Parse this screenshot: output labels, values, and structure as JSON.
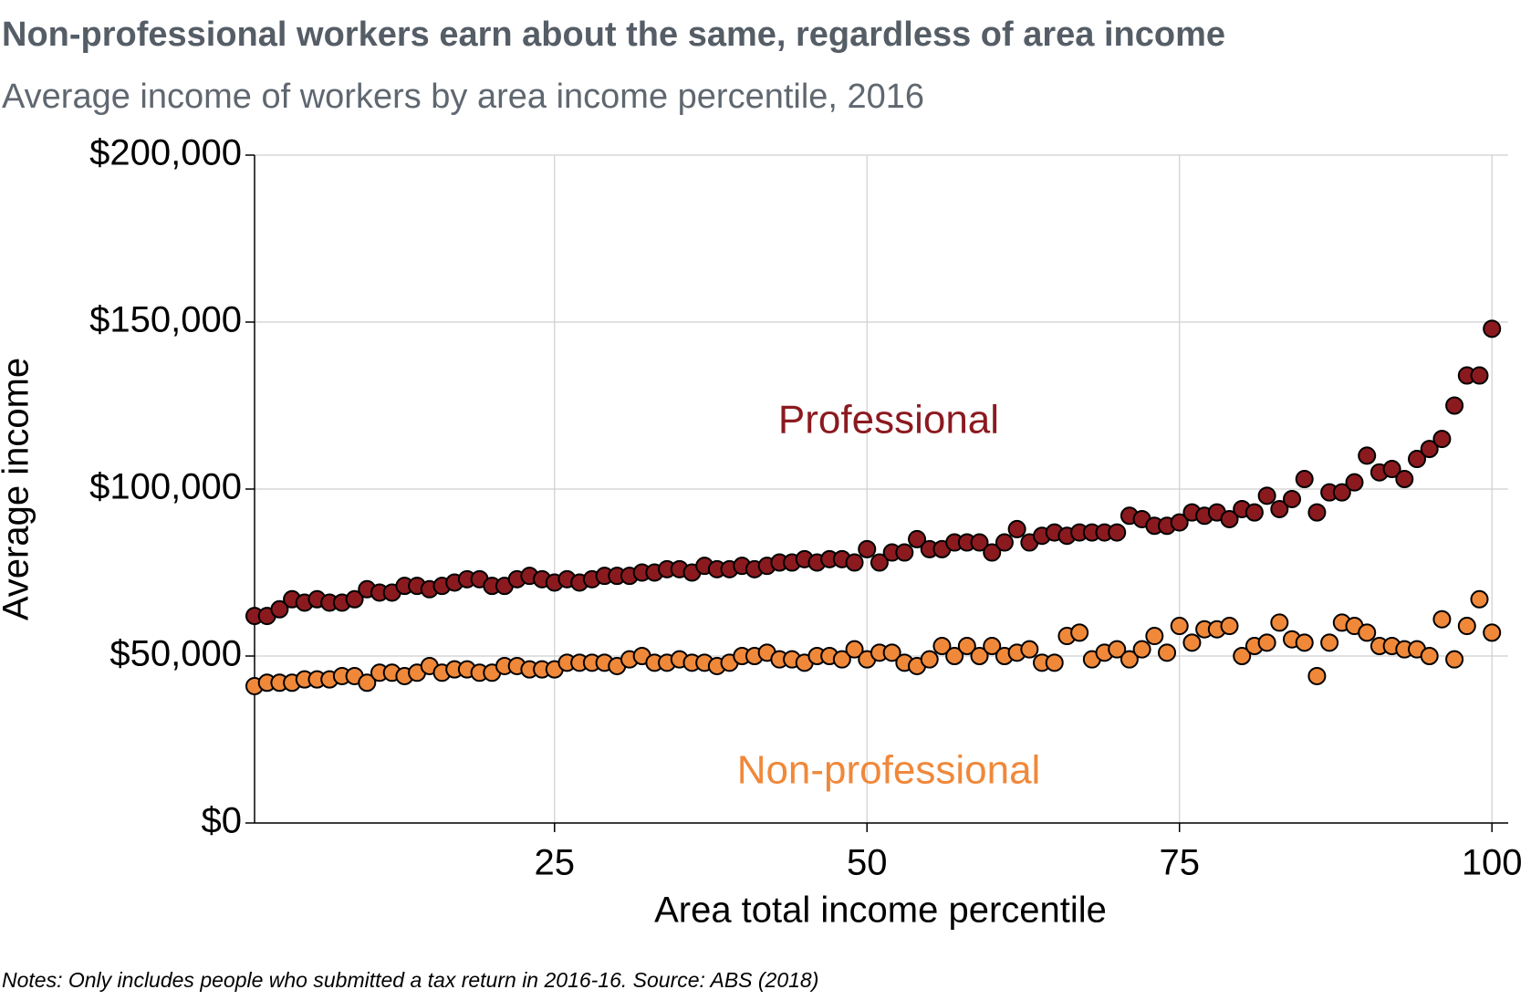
{
  "chart_data": {
    "type": "scatter",
    "title": "Non-professional workers earn about the same, regardless of area income",
    "subtitle": "Average income of workers by area income percentile, 2016",
    "x_label": "Area total income percentile",
    "y_label": "Average income",
    "note": "Notes: Only includes people who submitted a tax return in 2016-16. Source: ABS (2018)",
    "x": [
      1,
      2,
      3,
      4,
      5,
      6,
      7,
      8,
      9,
      10,
      11,
      12,
      13,
      14,
      15,
      16,
      17,
      18,
      19,
      20,
      21,
      22,
      23,
      24,
      25,
      26,
      27,
      28,
      29,
      30,
      31,
      32,
      33,
      34,
      35,
      36,
      37,
      38,
      39,
      40,
      41,
      42,
      43,
      44,
      45,
      46,
      47,
      48,
      49,
      50,
      51,
      52,
      53,
      54,
      55,
      56,
      57,
      58,
      59,
      60,
      61,
      62,
      63,
      64,
      65,
      66,
      67,
      68,
      69,
      70,
      71,
      72,
      73,
      74,
      75,
      76,
      77,
      78,
      79,
      80,
      81,
      82,
      83,
      84,
      85,
      86,
      87,
      88,
      89,
      90,
      91,
      92,
      93,
      94,
      95,
      96,
      97,
      98,
      99,
      100
    ],
    "series": [
      {
        "name": "Professional",
        "color": "#8b1a1f",
        "values": [
          62000,
          62000,
          64000,
          67000,
          66000,
          67000,
          66000,
          66000,
          67000,
          70000,
          69000,
          69000,
          71000,
          71000,
          70000,
          71000,
          72000,
          73000,
          73000,
          71000,
          71000,
          73000,
          74000,
          73000,
          72000,
          73000,
          72000,
          73000,
          74000,
          74000,
          74000,
          75000,
          75000,
          76000,
          76000,
          75000,
          77000,
          76000,
          76000,
          77000,
          76000,
          77000,
          78000,
          78000,
          79000,
          78000,
          79000,
          79000,
          78000,
          82000,
          78000,
          81000,
          81000,
          85000,
          82000,
          82000,
          84000,
          84000,
          84000,
          81000,
          84000,
          88000,
          84000,
          86000,
          87000,
          86000,
          87000,
          87000,
          87000,
          87000,
          92000,
          91000,
          89000,
          89000,
          90000,
          93000,
          92000,
          93000,
          91000,
          94000,
          93000,
          98000,
          94000,
          97000,
          103000,
          93000,
          99000,
          99000,
          102000,
          110000,
          105000,
          106000,
          103000,
          109000,
          112000,
          115000,
          125000,
          134000,
          134000,
          148000
        ]
      },
      {
        "name": "Non-professional",
        "color": "#f0883a",
        "values": [
          41000,
          42000,
          42000,
          42000,
          43000,
          43000,
          43000,
          44000,
          44000,
          42000,
          45000,
          45000,
          44000,
          45000,
          47000,
          45000,
          46000,
          46000,
          45000,
          45000,
          47000,
          47000,
          46000,
          46000,
          46000,
          48000,
          48000,
          48000,
          48000,
          47000,
          49000,
          50000,
          48000,
          48000,
          49000,
          48000,
          48000,
          47000,
          48000,
          50000,
          50000,
          51000,
          49000,
          49000,
          48000,
          50000,
          50000,
          49000,
          52000,
          49000,
          51000,
          51000,
          48000,
          47000,
          49000,
          53000,
          50000,
          53000,
          50000,
          53000,
          50000,
          51000,
          52000,
          48000,
          48000,
          56000,
          57000,
          49000,
          51000,
          52000,
          49000,
          52000,
          56000,
          51000,
          59000,
          54000,
          58000,
          58000,
          59000,
          50000,
          53000,
          54000,
          60000,
          55000,
          54000,
          44000,
          54000,
          60000,
          59000,
          57000,
          53000,
          53000,
          52000,
          52000,
          50000,
          61000,
          49000,
          59000,
          67000,
          57000
        ]
      }
    ],
    "xlim": [
      1,
      101.3
    ],
    "ylim": [
      0,
      200000
    ],
    "xticks": [
      25,
      50,
      75,
      100
    ],
    "yticks": [
      {
        "value": 0,
        "label": "$0"
      },
      {
        "value": 50000,
        "label": "$50,000"
      },
      {
        "value": 100000,
        "label": "$100,000"
      },
      {
        "value": 150000,
        "label": "$150,000"
      },
      {
        "value": 200000,
        "label": "$200,000"
      }
    ],
    "grid": true
  }
}
